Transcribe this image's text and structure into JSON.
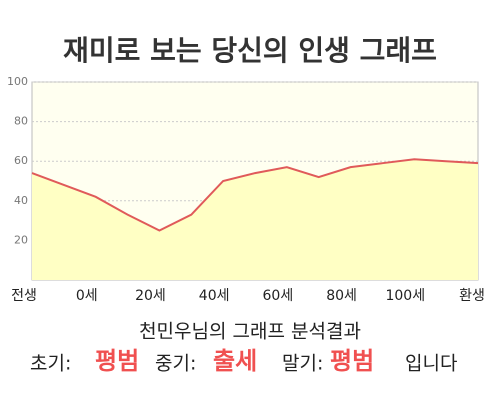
{
  "chart_data": {
    "type": "area",
    "title": "재미로 보는 당신의 인생 그래프",
    "categories": [
      "전생",
      null,
      "0세",
      null,
      "20세",
      null,
      "40세",
      null,
      "60세",
      null,
      "80세",
      null,
      "100세",
      null,
      "환생"
    ],
    "series": [
      {
        "color": "#e05a5a",
        "fill": "#ffffc4",
        "values": [
          54,
          48,
          42,
          33,
          25,
          33,
          50,
          54,
          57,
          52,
          57,
          59,
          61,
          60,
          59
        ]
      }
    ],
    "ylim": [
      0,
      100
    ],
    "yticks": [
      20,
      40,
      60,
      80,
      100
    ],
    "grid": true
  },
  "result": {
    "heading": "천민우님의 그래프 분석결과",
    "early_label": "초기:",
    "early": "평범",
    "mid_label": "중기:",
    "mid": "출세",
    "late_label": "말기:",
    "late": "평범",
    "ending": "입니다"
  }
}
